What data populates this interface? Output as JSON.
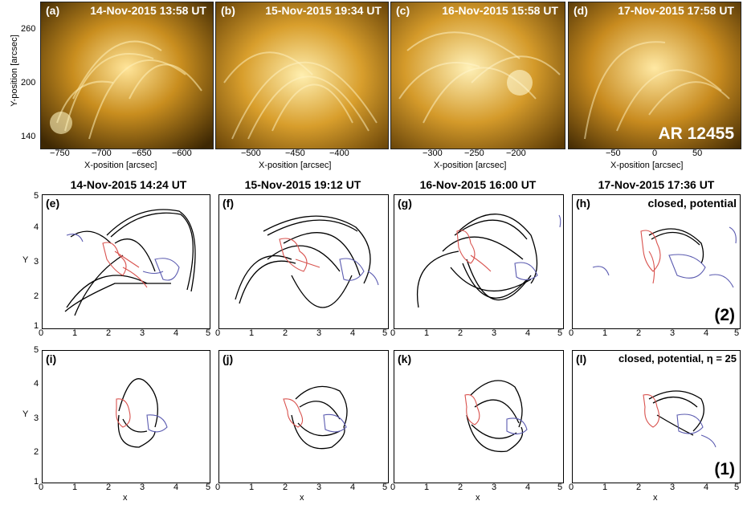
{
  "top_row": {
    "panels": [
      {
        "label": "(a)",
        "title": "14-Nov-2015 13:58 UT",
        "xticks": [
          "−750",
          "−700",
          "−650",
          "−600"
        ],
        "xlabel": "X-position [arcsec]"
      },
      {
        "label": "(b)",
        "title": "15-Nov-2015 19:34 UT",
        "xticks": [
          "−500",
          "−450",
          "−400"
        ],
        "xlabel": "X-position [arcsec]"
      },
      {
        "label": "(c)",
        "title": "16-Nov-2015 15:58 UT",
        "xticks": [
          "−300",
          "−250",
          "−200"
        ],
        "xlabel": "X-position [arcsec]"
      },
      {
        "label": "(d)",
        "title": "17-Nov-2015 17:58 UT",
        "xticks": [
          "−50",
          "0",
          "50"
        ],
        "xlabel": "X-position [arcsec]",
        "overlay": "AR 12455"
      }
    ],
    "ylabel": "Y-position [arcsec]",
    "yticks": [
      "260",
      "200",
      "140"
    ]
  },
  "middle_row": {
    "titles": [
      "14-Nov-2015 14:24 UT",
      "15-Nov-2015 19:12 UT",
      "16-Nov-2015 16:00 UT",
      "17-Nov-2015 17:36 UT"
    ],
    "labels": [
      "(e)",
      "(f)",
      "(g)",
      "(h)"
    ],
    "h_note": "closed, potential",
    "row_number": "(2)",
    "ylabel": "Y",
    "yticks": [
      "5",
      "4",
      "3",
      "2",
      "1"
    ],
    "xticks": [
      "0",
      "1",
      "2",
      "3",
      "4",
      "5"
    ]
  },
  "bottom_row": {
    "labels": [
      "(i)",
      "(j)",
      "(k)",
      "(l)"
    ],
    "l_note": "closed, potential, η = 25",
    "row_number": "(1)",
    "ylabel": "Y",
    "xlabel": "x",
    "yticks": [
      "5",
      "4",
      "3",
      "2",
      "1"
    ],
    "xticks": [
      "0",
      "1",
      "2",
      "3",
      "4",
      "5"
    ]
  },
  "colors": {
    "gold_bright": "#fff3b0",
    "gold_mid": "#d9a227",
    "gold_dark": "#5a3a05",
    "positive_contour": "#d9534f",
    "negative_contour": "#5b5bb0",
    "field_lines": "#000000"
  }
}
